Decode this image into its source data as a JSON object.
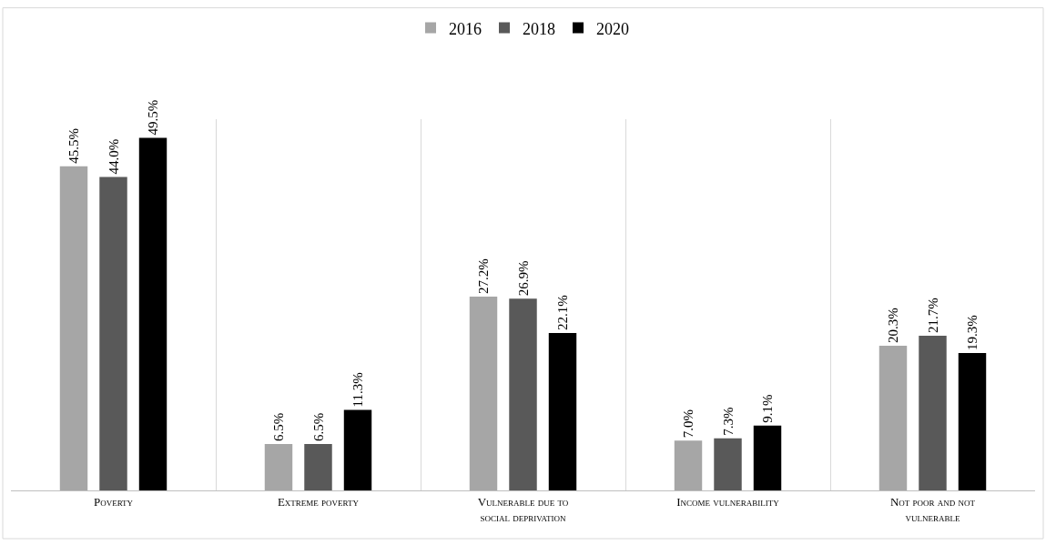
{
  "chart_data": {
    "type": "bar",
    "categories": [
      "Poverty",
      "Extreme poverty",
      "Vulnerable due to social deprivation",
      "Income vulnerability",
      "Not poor and not vulnerable"
    ],
    "series": [
      {
        "name": "2016",
        "color": "#a6a6a6",
        "values": [
          45.5,
          6.5,
          27.2,
          7.0,
          20.3
        ],
        "value_labels": [
          "45.5%",
          "6.5%",
          "27.2%",
          "7.0%",
          "20.3%"
        ]
      },
      {
        "name": "2018",
        "color": "#595959",
        "values": [
          44.0,
          6.5,
          26.9,
          7.3,
          21.7
        ],
        "value_labels": [
          "44.0%",
          "6.5%",
          "26.9%",
          "7.3%",
          "21.7%"
        ]
      },
      {
        "name": "2020",
        "color": "#000000",
        "values": [
          49.5,
          11.3,
          22.1,
          9.1,
          19.3
        ],
        "value_labels": [
          "49.5%",
          "11.3%",
          "22.1%",
          "9.1%",
          "19.3%"
        ]
      }
    ],
    "legend": "top",
    "grid": "x",
    "tick_labels": "x"
  }
}
